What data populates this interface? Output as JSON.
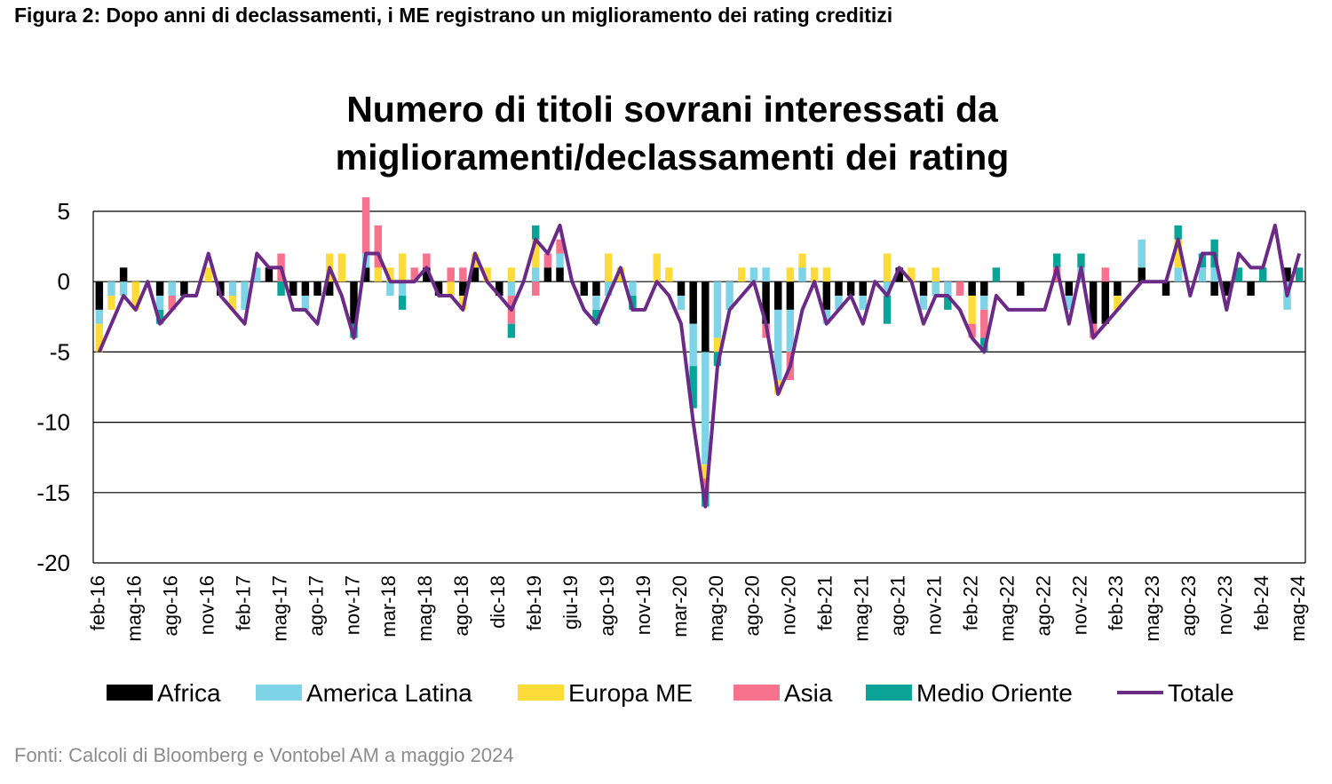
{
  "chart_data": {
    "type": "stacked-bar-line",
    "caption": "Figura 2: Dopo anni di declassamenti, i ME registrano un miglioramento dei rating creditizi",
    "title": "Numero di titoli sovrani interessati da miglioramenti/declassamenti dei rating",
    "source": "Fonti: Calcoli di Bloomberg e Vontobel AM a maggio 2024",
    "categories": [
      "feb-16",
      null,
      null,
      "mag-16",
      null,
      null,
      "ago-16",
      null,
      null,
      "nov-16",
      null,
      null,
      "feb-17",
      null,
      null,
      "mag-17",
      null,
      null,
      "ago-17",
      null,
      null,
      "nov-17",
      null,
      null,
      "mar-18",
      null,
      null,
      "mag-18",
      null,
      null,
      "ago-18",
      null,
      null,
      "dic-18",
      null,
      null,
      "feb-19",
      null,
      null,
      "giu-19",
      null,
      null,
      "ago-19",
      null,
      null,
      "nov-19",
      null,
      null,
      "mar-20",
      null,
      null,
      "mag-20",
      null,
      null,
      "ago-20",
      null,
      null,
      "nov-20",
      null,
      null,
      "feb-21",
      null,
      null,
      "mag-21",
      null,
      null,
      "ago-21",
      null,
      null,
      "nov-21",
      null,
      null,
      "feb-22",
      null,
      null,
      "mag-22",
      null,
      null,
      "ago-22",
      null,
      null,
      "nov-22",
      null,
      null,
      "feb-23",
      null,
      null,
      "mag-23",
      null,
      null,
      "ago-23",
      null,
      null,
      "nov-23",
      null,
      null,
      "feb-24",
      null,
      null,
      "mag-24"
    ],
    "series": [
      {
        "name": "Africa",
        "kind": "bar",
        "color": "#000000",
        "values": [
          -2,
          0,
          1,
          0,
          0,
          -1,
          0,
          -1,
          0,
          0,
          -1,
          0,
          0,
          0,
          1,
          0,
          -1,
          -1,
          -1,
          -1,
          0,
          -3,
          1,
          0,
          0,
          0,
          0,
          1,
          -1,
          0,
          -1,
          1,
          0,
          -1,
          0,
          0,
          0,
          1,
          1,
          0,
          -1,
          -1,
          0,
          0,
          0,
          0,
          0,
          0,
          -1,
          -3,
          -5,
          0,
          0,
          0,
          0,
          -3,
          -2,
          -2,
          0,
          0,
          -2,
          -1,
          -1,
          -1,
          0,
          0,
          1,
          0,
          -1,
          0,
          0,
          0,
          -1,
          -1,
          0,
          0,
          -1,
          0,
          0,
          0,
          -1,
          0,
          -3,
          -3,
          -1,
          0,
          1,
          0,
          -1,
          0,
          0,
          0,
          -1,
          -1,
          0,
          -1,
          0,
          0,
          1,
          0
        ]
      },
      {
        "name": "America Latina",
        "kind": "bar",
        "color": "#7fd3e6",
        "values": [
          -1,
          -1,
          -1,
          0,
          0,
          -1,
          -1,
          0,
          0,
          0,
          0,
          -1,
          -2,
          1,
          0,
          0,
          0,
          -1,
          0,
          0,
          0,
          0,
          1,
          0,
          -1,
          -1,
          0,
          0,
          0,
          0,
          0,
          0,
          0,
          0,
          -1,
          0,
          1,
          0,
          1,
          0,
          0,
          -1,
          -1,
          0,
          -1,
          0,
          0,
          0,
          -1,
          -3,
          -8,
          -4,
          -2,
          0,
          1,
          1,
          -5,
          -3,
          1,
          0,
          -1,
          -1,
          0,
          -1,
          0,
          -1,
          0,
          0,
          -1,
          -1,
          -1,
          0,
          0,
          -1,
          0,
          0,
          0,
          0,
          0,
          0,
          -1,
          1,
          0,
          0,
          0,
          0,
          2,
          0,
          0,
          1,
          0,
          1,
          1,
          0,
          0,
          0,
          0,
          0,
          -2,
          0
        ]
      },
      {
        "name": "Europa ME",
        "kind": "bar",
        "color": "#fddc3a",
        "values": [
          -2,
          -1,
          0,
          -2,
          0,
          0,
          0,
          0,
          0,
          1,
          0,
          -1,
          0,
          0,
          0,
          0,
          0,
          0,
          0,
          2,
          2,
          0,
          0,
          1,
          1,
          2,
          0,
          0,
          0,
          -1,
          -1,
          1,
          1,
          0,
          1,
          0,
          2,
          0,
          0,
          0,
          0,
          0,
          2,
          1,
          0,
          0,
          2,
          1,
          0,
          0,
          -1,
          -1,
          0,
          1,
          0,
          0,
          -1,
          1,
          1,
          1,
          1,
          0,
          0,
          0,
          0,
          2,
          0,
          1,
          0,
          1,
          0,
          0,
          -2,
          0,
          0,
          0,
          0,
          0,
          0,
          0,
          0,
          0,
          0,
          0,
          -1,
          0,
          0,
          0,
          0,
          2,
          0,
          0,
          0,
          0,
          0,
          0,
          0,
          0,
          0,
          0
        ]
      },
      {
        "name": "Asia",
        "kind": "bar",
        "color": "#f7738d",
        "values": [
          0,
          0,
          0,
          0,
          0,
          0,
          -1,
          0,
          0,
          0,
          0,
          0,
          0,
          0,
          0,
          2,
          0,
          0,
          0,
          0,
          0,
          0,
          4,
          3,
          0,
          0,
          1,
          1,
          0,
          1,
          1,
          0,
          0,
          0,
          -2,
          0,
          -1,
          1,
          1,
          0,
          0,
          0,
          0,
          0,
          0,
          0,
          0,
          0,
          0,
          0,
          -1,
          0,
          0,
          0,
          0,
          -1,
          0,
          -2,
          0,
          0,
          0,
          0,
          0,
          0,
          0,
          0,
          0,
          0,
          0,
          0,
          0,
          -1,
          -1,
          -2,
          0,
          0,
          0,
          0,
          0,
          1,
          0,
          0,
          -1,
          1,
          0,
          0,
          0,
          0,
          0,
          0,
          0,
          0,
          0,
          0,
          0,
          0,
          0,
          0,
          0,
          0
        ]
      },
      {
        "name": "Medio Oriente",
        "kind": "bar",
        "color": "#0aa398",
        "values": [
          0,
          0,
          0,
          0,
          0,
          -1,
          0,
          0,
          0,
          0,
          0,
          0,
          0,
          0,
          0,
          -1,
          0,
          0,
          0,
          0,
          0,
          -1,
          0,
          0,
          0,
          -1,
          0,
          0,
          0,
          0,
          0,
          0,
          0,
          0,
          -1,
          0,
          1,
          0,
          0,
          0,
          0,
          -1,
          0,
          0,
          -1,
          0,
          0,
          0,
          0,
          -3,
          -1,
          -1,
          0,
          0,
          0,
          0,
          0,
          0,
          0,
          0,
          0,
          0,
          0,
          0,
          0,
          -2,
          0,
          0,
          0,
          0,
          -1,
          0,
          0,
          -1,
          1,
          0,
          0,
          0,
          0,
          1,
          0,
          1,
          0,
          0,
          0,
          0,
          0,
          0,
          0,
          1,
          0,
          1,
          2,
          0,
          1,
          0,
          1,
          0,
          0,
          1
        ]
      },
      {
        "name": "Totale",
        "kind": "line",
        "color": "#6a2a85",
        "values": [
          -5,
          -3,
          -1,
          -2,
          0,
          -3,
          -2,
          -1,
          -1,
          2,
          -1,
          -2,
          -3,
          2,
          1,
          1,
          -2,
          -2,
          -3,
          1,
          -1,
          -4,
          2,
          2,
          0,
          0,
          0,
          1,
          -1,
          -1,
          -2,
          2,
          0,
          -1,
          -2,
          0,
          3,
          2,
          4,
          0,
          -2,
          -3,
          -1,
          1,
          -2,
          -2,
          0,
          -1,
          -3,
          -10,
          -16,
          -6,
          -2,
          -1,
          0,
          -3,
          -8,
          -6,
          -2,
          0,
          -3,
          -2,
          -1,
          -3,
          0,
          -1,
          1,
          0,
          -3,
          -1,
          -1,
          -2,
          -4,
          -5,
          -1,
          -2,
          -2,
          -2,
          -2,
          1,
          -3,
          1,
          -4,
          -3,
          -2,
          -1,
          0,
          0,
          0,
          3,
          -1,
          2,
          2,
          -2,
          2,
          1,
          1,
          4,
          -1,
          2
        ]
      }
    ],
    "ylim": [
      -20,
      5
    ],
    "yticks": [
      -20,
      -15,
      -10,
      -5,
      0,
      5
    ],
    "grid": true,
    "legend": "bottom"
  }
}
